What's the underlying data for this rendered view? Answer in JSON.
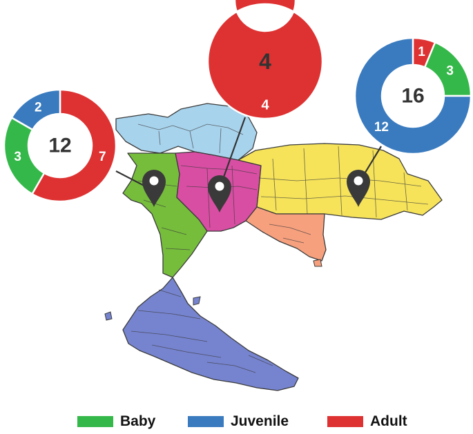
{
  "colors": {
    "baby": "#35b84a",
    "juvenile": "#3a7bbf",
    "adult": "#de3232",
    "region_north_light": "#a8d3ec",
    "region_west_green": "#76bd3c",
    "region_central_pink": "#d84ea3",
    "region_northeast_yellow": "#f6e35a",
    "region_east_salmon": "#f6a07e",
    "region_south_purple": "#7684cf",
    "border": "#3a3a3a",
    "pin": "#3a3a3a"
  },
  "legend": {
    "baby": "Baby",
    "juvenile": "Juvenile",
    "adult": "Adult"
  },
  "chart_data": [
    {
      "type": "pie",
      "location": "west",
      "total": "12",
      "slices": [
        {
          "category": "Adult",
          "value": 7,
          "label": "7"
        },
        {
          "category": "Baby",
          "value": 3,
          "label": "3"
        },
        {
          "category": "Juvenile",
          "value": 2,
          "label": "2"
        }
      ]
    },
    {
      "type": "pie",
      "location": "central",
      "total": "4",
      "slices": [
        {
          "category": "Adult",
          "value": 4,
          "label": "4"
        }
      ]
    },
    {
      "type": "pie",
      "location": "northeast",
      "total": "16",
      "slices": [
        {
          "category": "Adult",
          "value": 1,
          "label": "1"
        },
        {
          "category": "Baby",
          "value": 3,
          "label": "3"
        },
        {
          "category": "Juvenile",
          "value": 12,
          "label": "12"
        }
      ]
    }
  ]
}
